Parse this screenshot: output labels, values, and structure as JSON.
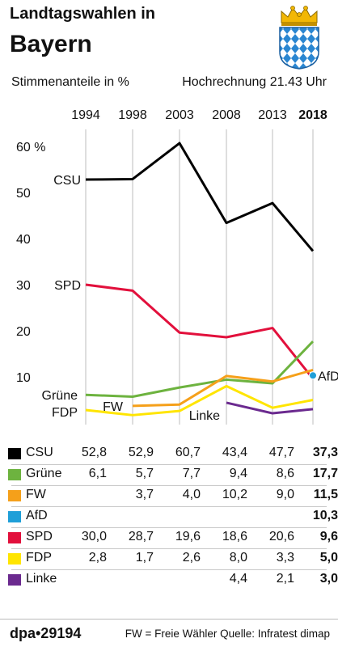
{
  "header": {
    "title_line1": "Landtagswahlen in",
    "title_line2": "Bayern",
    "subtitle": "Stimmenanteile in %",
    "projection": "Hochrechnung 21.43 Uhr"
  },
  "chart_data": {
    "type": "line",
    "years": [
      "1994",
      "1998",
      "2003",
      "2008",
      "2013",
      "2018"
    ],
    "ylim": [
      0,
      63
    ],
    "yticks": [
      "60 %",
      "50",
      "40",
      "30",
      "20",
      "10"
    ],
    "ytick_values": [
      60,
      50,
      40,
      30,
      20,
      10
    ],
    "grid": true,
    "series": [
      {
        "name": "CSU",
        "color": "#000000",
        "values": [
          52.8,
          52.9,
          60.7,
          43.4,
          47.7,
          37.3
        ]
      },
      {
        "name": "Grüne",
        "color": "#6db33f",
        "values": [
          6.1,
          5.7,
          7.7,
          9.4,
          8.6,
          17.7
        ]
      },
      {
        "name": "FW",
        "color": "#f5a01a",
        "values": [
          null,
          3.7,
          4.0,
          10.2,
          9.0,
          11.5
        ]
      },
      {
        "name": "AfD",
        "color": "#1f9fd8",
        "values": [
          null,
          null,
          null,
          null,
          null,
          10.3
        ]
      },
      {
        "name": "SPD",
        "color": "#e2103c",
        "values": [
          30.0,
          28.7,
          19.6,
          18.6,
          20.6,
          9.6
        ]
      },
      {
        "name": "FDP",
        "color": "#ffe500",
        "values": [
          2.8,
          1.7,
          2.6,
          8.0,
          3.3,
          5.0
        ]
      },
      {
        "name": "Linke",
        "color": "#6b2a8f",
        "values": [
          null,
          null,
          null,
          4.4,
          2.1,
          3.0
        ]
      }
    ]
  },
  "table": {
    "rows": [
      {
        "party": "CSU",
        "color": "#000000",
        "cells": [
          "52,8",
          "52,9",
          "60,7",
          "43,4",
          "47,7",
          "37,3"
        ]
      },
      {
        "party": "Grüne",
        "color": "#6db33f",
        "cells": [
          "6,1",
          "5,7",
          "7,7",
          "9,4",
          "8,6",
          "17,7"
        ]
      },
      {
        "party": "FW",
        "color": "#f5a01a",
        "cells": [
          "",
          "3,7",
          "4,0",
          "10,2",
          "9,0",
          "11,5"
        ]
      },
      {
        "party": "AfD",
        "color": "#1f9fd8",
        "cells": [
          "",
          "",
          "",
          "",
          "",
          "10,3"
        ]
      },
      {
        "party": "SPD",
        "color": "#e2103c",
        "cells": [
          "30,0",
          "28,7",
          "19,6",
          "18,6",
          "20,6",
          "9,6"
        ]
      },
      {
        "party": "FDP",
        "color": "#ffe500",
        "cells": [
          "2,8",
          "1,7",
          "2,6",
          "8,0",
          "3,3",
          "5,0"
        ]
      },
      {
        "party": "Linke",
        "color": "#6b2a8f",
        "cells": [
          "",
          "",
          "",
          "4,4",
          "2,1",
          "3,0"
        ]
      }
    ]
  },
  "footer": {
    "logo": "dpa•29194",
    "note": "FW = Freie Wähler   Quelle: Infratest dimap"
  }
}
